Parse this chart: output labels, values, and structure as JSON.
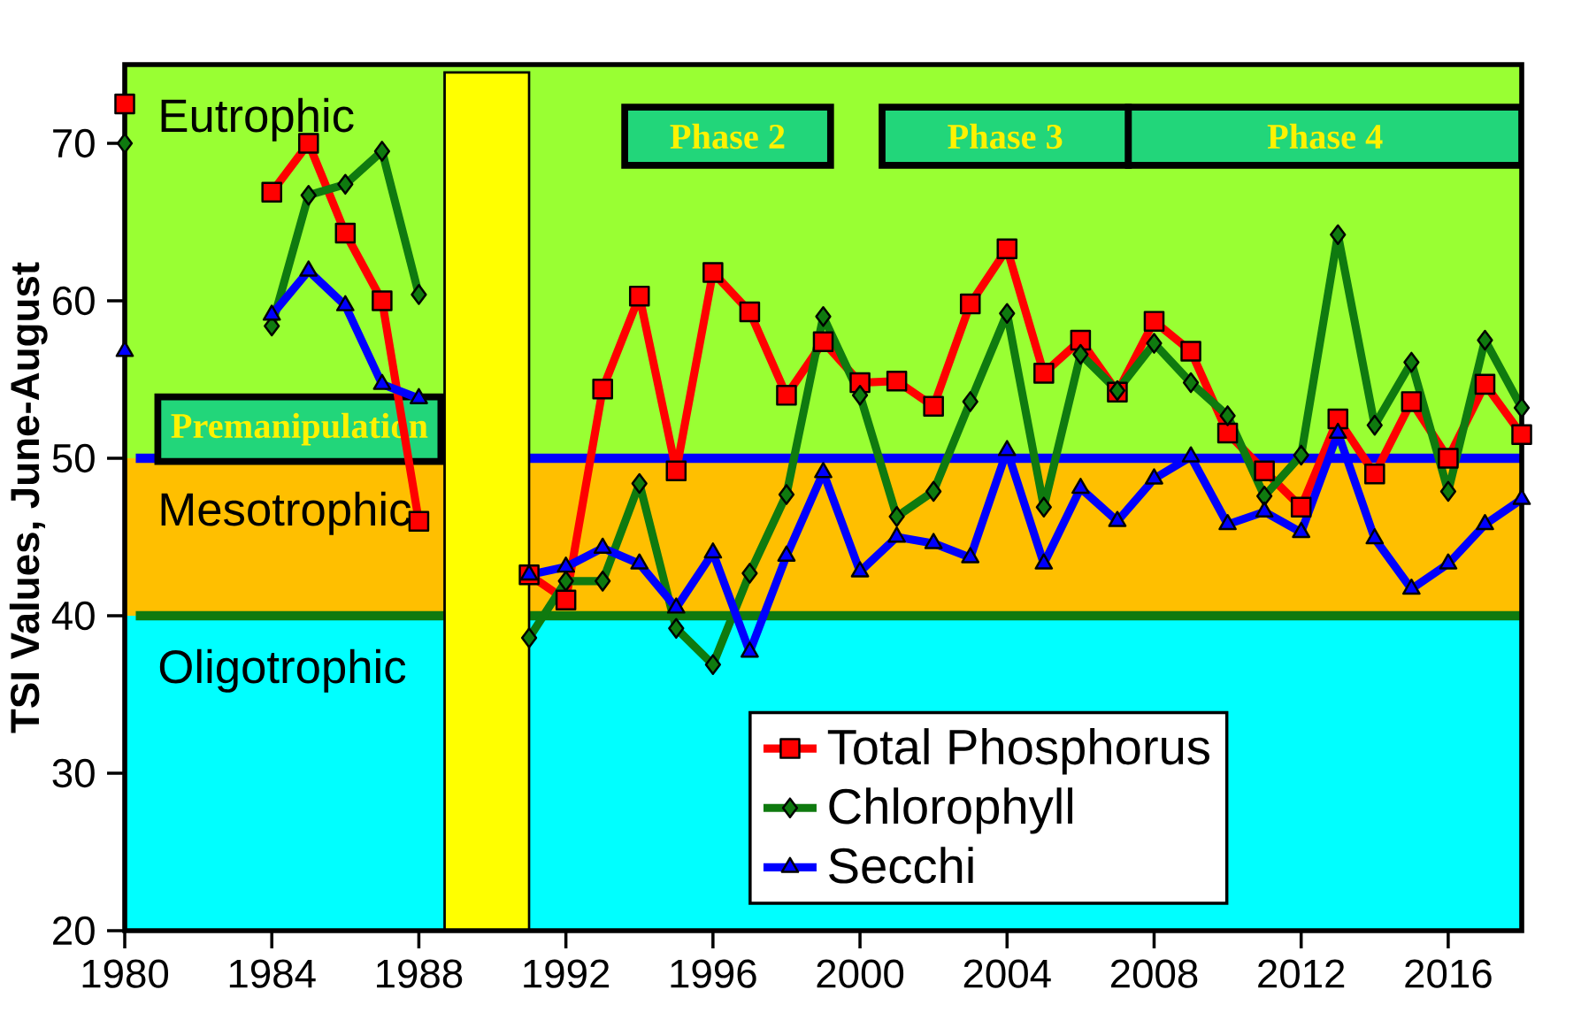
{
  "chart_data": {
    "type": "line",
    "ylabel": "TSI Values, June-August",
    "x": [
      1980,
      1981,
      1982,
      1983,
      1984,
      1985,
      1986,
      1987,
      1988,
      1989,
      1990,
      1991,
      1992,
      1993,
      1994,
      1995,
      1996,
      1997,
      1998,
      1999,
      2000,
      2001,
      2002,
      2003,
      2004,
      2005,
      2006,
      2007,
      2008,
      2009,
      2010,
      2011,
      2012,
      2013,
      2014,
      2015,
      2016,
      2017,
      2018
    ],
    "series": [
      {
        "name": "Total Phosphorus",
        "color": "#ff0000",
        "marker": "square",
        "values": [
          72.5,
          null,
          null,
          null,
          66.9,
          70,
          64.3,
          60,
          46.0,
          null,
          null,
          42.6,
          41.0,
          54.4,
          60.3,
          49.2,
          61.8,
          59.3,
          54.0,
          57.4,
          54.8,
          54.9,
          53.3,
          59.8,
          63.3,
          55.4,
          57.5,
          54.2,
          58.7,
          56.8,
          51.6,
          49.2,
          46.9,
          52.5,
          49.0,
          53.6,
          50.0,
          54.7,
          51.5
        ]
      },
      {
        "name": "Chlorophyll",
        "color": "#0f7a0f",
        "marker": "diamond",
        "values": [
          70,
          null,
          null,
          null,
          58.4,
          66.7,
          67.4,
          69.5,
          60.4,
          null,
          null,
          38.6,
          42.2,
          42.2,
          48.4,
          39.2,
          36.9,
          42.7,
          47.7,
          59.0,
          54.0,
          46.3,
          47.9,
          53.6,
          59.2,
          46.9,
          56.6,
          54.3,
          57.3,
          54.8,
          52.7,
          47.6,
          50.2,
          64.2,
          52.1,
          56.1,
          47.9,
          57.5,
          53.2
        ]
      },
      {
        "name": "Secchi",
        "color": "#0000ff",
        "marker": "triangle",
        "values": [
          56.8,
          null,
          null,
          null,
          59.1,
          61.9,
          59.7,
          54.7,
          53.8,
          null,
          null,
          42.6,
          43.1,
          44.3,
          43.3,
          40.5,
          44.0,
          37.7,
          43.8,
          49.1,
          42.8,
          45.0,
          44.6,
          43.7,
          50.5,
          43.3,
          48.1,
          46.0,
          48.7,
          50.1,
          45.8,
          46.6,
          45.3,
          51.6,
          44.9,
          41.7,
          43.3,
          45.8,
          47.4
        ]
      }
    ],
    "xlim": [
      1980,
      2018
    ],
    "ylim": [
      20,
      75
    ],
    "xticks": [
      1980,
      1984,
      1988,
      1992,
      1996,
      2000,
      2004,
      2008,
      2012,
      2016
    ],
    "yticks": [
      20,
      30,
      40,
      50,
      60,
      70
    ],
    "bands": [
      {
        "axis": "y",
        "from": 50,
        "to": 75,
        "label": "Eutrophic",
        "color": "#99ff33"
      },
      {
        "axis": "y",
        "from": 40,
        "to": 50,
        "label": "Mesotrophic",
        "color": "#ffbf00"
      },
      {
        "axis": "y",
        "from": 20,
        "to": 40,
        "label": "Oligotrophic",
        "color": "#00ffff"
      },
      {
        "axis": "x",
        "from": 1988.7,
        "to": 1991.0,
        "color": "#ffff00"
      },
      {
        "axis": "x",
        "from": 1980.9,
        "to": 1988.6,
        "label": "Premanipulation",
        "color": "#22d67a"
      },
      {
        "axis": "x",
        "from": 1993.6,
        "to": 1999.2,
        "label": "Phase 2",
        "color": "#22d67a"
      },
      {
        "axis": "x",
        "from": 2000.6,
        "to": 2007.3,
        "label": "Phase 3",
        "color": "#22d67a"
      },
      {
        "axis": "x",
        "from": 2007.3,
        "to": 2018,
        "label": "Phase 4",
        "color": "#22d67a"
      }
    ],
    "ref_lines": [
      {
        "axis": "y",
        "value": 50,
        "color": "#0000ff"
      },
      {
        "axis": "y",
        "value": 40,
        "color": "#0f7a0f"
      }
    ],
    "legend": "bottom right",
    "line_style": "solid",
    "grid": false
  }
}
